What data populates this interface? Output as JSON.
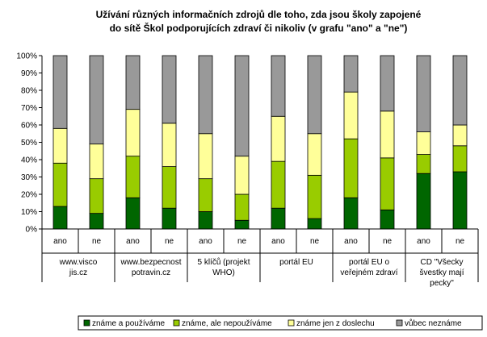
{
  "chart_data": {
    "type": "bar",
    "stacked": true,
    "percent": true,
    "title_lines": [
      "Užívání různých informačních zdrojů dle toho, zda jsou školy zapojené",
      "do sítě Škol podporujících zdraví či nikoliv (v grafu \"ano\" a \"ne\")"
    ],
    "ylim": [
      0,
      100
    ],
    "y_ticks": [
      "0%",
      "10%",
      "20%",
      "30%",
      "40%",
      "50%",
      "60%",
      "70%",
      "80%",
      "90%",
      "100%"
    ],
    "grid": false,
    "legend_position": "bottom",
    "categories": [
      "ano",
      "ne",
      "ano",
      "ne",
      "ano",
      "ne",
      "ano",
      "ne",
      "ano",
      "ne",
      "ano",
      "ne"
    ],
    "groups": [
      {
        "lines": [
          "www.visco",
          "jis.cz"
        ]
      },
      {
        "lines": [
          "www.bezpecnost",
          "potravin.cz"
        ]
      },
      {
        "lines": [
          "5 klíčů (projekt",
          "WHO)"
        ]
      },
      {
        "lines": [
          "portál EU"
        ]
      },
      {
        "lines": [
          "portál EU o",
          "veřejném zdraví"
        ]
      },
      {
        "lines": [
          "CD \"Všecky",
          "švestky mají",
          "pecky\""
        ]
      }
    ],
    "series": [
      {
        "name": "známe a používáme",
        "color": "#006600",
        "values": [
          13,
          9,
          18,
          12,
          10,
          5,
          12,
          6,
          18,
          11,
          32,
          33
        ]
      },
      {
        "name": "známe, ale nepoužíváme",
        "color": "#99cc00",
        "values": [
          25,
          20,
          24,
          24,
          19,
          15,
          27,
          25,
          34,
          30,
          11,
          15
        ]
      },
      {
        "name": "známe jen z doslechu",
        "color": "#ffff99",
        "values": [
          20,
          20,
          27,
          25,
          26,
          22,
          26,
          24,
          27,
          27,
          13,
          12
        ]
      },
      {
        "name": "vůbec neznáme",
        "color": "#999999",
        "values": [
          42,
          51,
          31,
          39,
          45,
          58,
          35,
          45,
          21,
          32,
          44,
          40
        ]
      }
    ]
  }
}
